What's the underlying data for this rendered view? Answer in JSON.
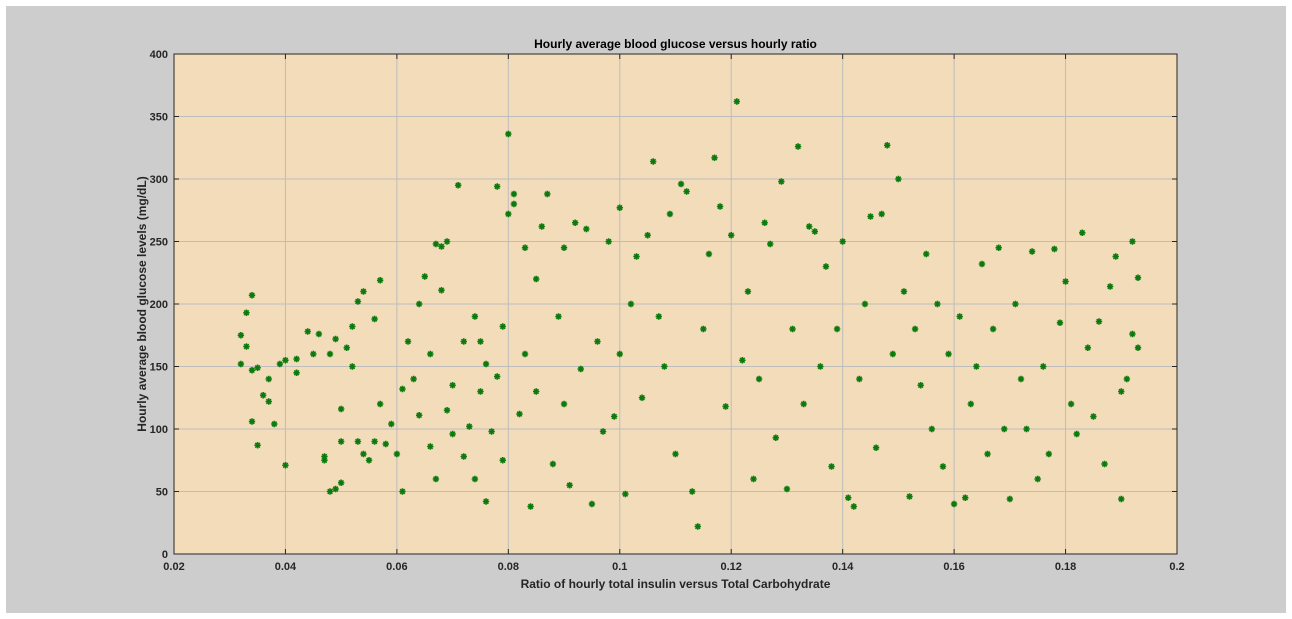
{
  "colors": {
    "figure_background": "#cdcdcd",
    "plot_background": "#f2dcba",
    "marker": "#0d7a0d",
    "grid": "#bdbdbd",
    "axis": "#262626"
  },
  "chart_data": {
    "type": "scatter",
    "title": "Hourly average blood glucose versus hourly ratio",
    "xlabel": "Ratio of hourly total insulin versus Total Carbohydrate",
    "ylabel": "Hourly average blood glucose levels (mg/dL)",
    "xlim": [
      0.02,
      0.2
    ],
    "ylim": [
      0,
      400
    ],
    "xticks": [
      "0.02",
      "0.04",
      "0.06",
      "0.08",
      "0.1",
      "0.12",
      "0.14",
      "0.16",
      "0.18",
      "0.2"
    ],
    "yticks": [
      "0",
      "50",
      "100",
      "150",
      "200",
      "250",
      "300",
      "350",
      "400"
    ],
    "grid": true,
    "marker": "*",
    "series": [
      {
        "points": [
          [
            0.032,
            152
          ],
          [
            0.032,
            175
          ],
          [
            0.033,
            193
          ],
          [
            0.033,
            166
          ],
          [
            0.034,
            207
          ],
          [
            0.034,
            147
          ],
          [
            0.034,
            106
          ],
          [
            0.035,
            87
          ],
          [
            0.035,
            149
          ],
          [
            0.036,
            127
          ],
          [
            0.037,
            122
          ],
          [
            0.037,
            140
          ],
          [
            0.038,
            104
          ],
          [
            0.039,
            152
          ],
          [
            0.04,
            71
          ],
          [
            0.04,
            155
          ],
          [
            0.042,
            145
          ],
          [
            0.042,
            156
          ],
          [
            0.044,
            178
          ],
          [
            0.045,
            160
          ],
          [
            0.046,
            176
          ],
          [
            0.047,
            75
          ],
          [
            0.047,
            78
          ],
          [
            0.048,
            50
          ],
          [
            0.048,
            160
          ],
          [
            0.049,
            52
          ],
          [
            0.049,
            172
          ],
          [
            0.05,
            57
          ],
          [
            0.05,
            116
          ],
          [
            0.05,
            90
          ],
          [
            0.051,
            165
          ],
          [
            0.052,
            182
          ],
          [
            0.052,
            150
          ],
          [
            0.053,
            202
          ],
          [
            0.053,
            90
          ],
          [
            0.054,
            210
          ],
          [
            0.054,
            80
          ],
          [
            0.055,
            75
          ],
          [
            0.056,
            188
          ],
          [
            0.056,
            90
          ],
          [
            0.057,
            219
          ],
          [
            0.057,
            120
          ],
          [
            0.058,
            88
          ],
          [
            0.059,
            104
          ],
          [
            0.06,
            80
          ],
          [
            0.061,
            50
          ],
          [
            0.061,
            132
          ],
          [
            0.062,
            170
          ],
          [
            0.063,
            140
          ],
          [
            0.064,
            111
          ],
          [
            0.064,
            200
          ],
          [
            0.065,
            222
          ],
          [
            0.066,
            86
          ],
          [
            0.066,
            160
          ],
          [
            0.067,
            248
          ],
          [
            0.067,
            60
          ],
          [
            0.068,
            211
          ],
          [
            0.068,
            246
          ],
          [
            0.069,
            250
          ],
          [
            0.069,
            115
          ],
          [
            0.07,
            135
          ],
          [
            0.07,
            96
          ],
          [
            0.071,
            295
          ],
          [
            0.072,
            170
          ],
          [
            0.072,
            78
          ],
          [
            0.073,
            102
          ],
          [
            0.074,
            190
          ],
          [
            0.074,
            60
          ],
          [
            0.075,
            130
          ],
          [
            0.075,
            170
          ],
          [
            0.076,
            152
          ],
          [
            0.076,
            42
          ],
          [
            0.077,
            98
          ],
          [
            0.078,
            294
          ],
          [
            0.078,
            142
          ],
          [
            0.079,
            182
          ],
          [
            0.079,
            75
          ],
          [
            0.08,
            336
          ],
          [
            0.08,
            272
          ],
          [
            0.081,
            288
          ],
          [
            0.081,
            280
          ],
          [
            0.082,
            112
          ],
          [
            0.083,
            245
          ],
          [
            0.083,
            160
          ],
          [
            0.084,
            38
          ],
          [
            0.085,
            220
          ],
          [
            0.085,
            130
          ],
          [
            0.086,
            262
          ],
          [
            0.087,
            288
          ],
          [
            0.088,
            72
          ],
          [
            0.089,
            190
          ],
          [
            0.09,
            245
          ],
          [
            0.09,
            120
          ],
          [
            0.091,
            55
          ],
          [
            0.092,
            265
          ],
          [
            0.093,
            148
          ],
          [
            0.094,
            260
          ],
          [
            0.095,
            40
          ],
          [
            0.096,
            170
          ],
          [
            0.097,
            98
          ],
          [
            0.098,
            250
          ],
          [
            0.099,
            110
          ],
          [
            0.1,
            277
          ],
          [
            0.1,
            160
          ],
          [
            0.101,
            48
          ],
          [
            0.102,
            200
          ],
          [
            0.103,
            238
          ],
          [
            0.104,
            125
          ],
          [
            0.105,
            255
          ],
          [
            0.106,
            314
          ],
          [
            0.107,
            190
          ],
          [
            0.108,
            150
          ],
          [
            0.109,
            272
          ],
          [
            0.11,
            80
          ],
          [
            0.111,
            296
          ],
          [
            0.112,
            290
          ],
          [
            0.113,
            50
          ],
          [
            0.114,
            22
          ],
          [
            0.115,
            180
          ],
          [
            0.116,
            240
          ],
          [
            0.117,
            317
          ],
          [
            0.118,
            278
          ],
          [
            0.119,
            118
          ],
          [
            0.12,
            255
          ],
          [
            0.121,
            362
          ],
          [
            0.122,
            155
          ],
          [
            0.123,
            210
          ],
          [
            0.124,
            60
          ],
          [
            0.125,
            140
          ],
          [
            0.126,
            265
          ],
          [
            0.127,
            248
          ],
          [
            0.128,
            93
          ],
          [
            0.129,
            298
          ],
          [
            0.13,
            52
          ],
          [
            0.131,
            180
          ],
          [
            0.132,
            326
          ],
          [
            0.133,
            120
          ],
          [
            0.134,
            262
          ],
          [
            0.135,
            258
          ],
          [
            0.136,
            150
          ],
          [
            0.137,
            230
          ],
          [
            0.138,
            70
          ],
          [
            0.139,
            180
          ],
          [
            0.14,
            250
          ],
          [
            0.141,
            45
          ],
          [
            0.142,
            38
          ],
          [
            0.143,
            140
          ],
          [
            0.144,
            200
          ],
          [
            0.145,
            270
          ],
          [
            0.146,
            85
          ],
          [
            0.147,
            272
          ],
          [
            0.148,
            327
          ],
          [
            0.149,
            160
          ],
          [
            0.15,
            300
          ],
          [
            0.151,
            210
          ],
          [
            0.152,
            46
          ],
          [
            0.153,
            180
          ],
          [
            0.154,
            135
          ],
          [
            0.155,
            240
          ],
          [
            0.156,
            100
          ],
          [
            0.157,
            200
          ],
          [
            0.158,
            70
          ],
          [
            0.159,
            160
          ],
          [
            0.16,
            40
          ],
          [
            0.161,
            190
          ],
          [
            0.162,
            45
          ],
          [
            0.163,
            120
          ],
          [
            0.164,
            150
          ],
          [
            0.165,
            232
          ],
          [
            0.166,
            80
          ],
          [
            0.167,
            180
          ],
          [
            0.168,
            245
          ],
          [
            0.169,
            100
          ],
          [
            0.17,
            44
          ],
          [
            0.171,
            200
          ],
          [
            0.172,
            140
          ],
          [
            0.173,
            100
          ],
          [
            0.174,
            242
          ],
          [
            0.175,
            60
          ],
          [
            0.176,
            150
          ],
          [
            0.177,
            80
          ],
          [
            0.178,
            244
          ],
          [
            0.179,
            185
          ],
          [
            0.18,
            218
          ],
          [
            0.181,
            120
          ],
          [
            0.182,
            96
          ],
          [
            0.183,
            257
          ],
          [
            0.184,
            165
          ],
          [
            0.185,
            110
          ],
          [
            0.186,
            186
          ],
          [
            0.187,
            72
          ],
          [
            0.188,
            214
          ],
          [
            0.189,
            238
          ],
          [
            0.19,
            44
          ],
          [
            0.19,
            130
          ],
          [
            0.191,
            140
          ],
          [
            0.192,
            250
          ],
          [
            0.192,
            176
          ],
          [
            0.193,
            221
          ],
          [
            0.193,
            165
          ]
        ]
      }
    ]
  }
}
